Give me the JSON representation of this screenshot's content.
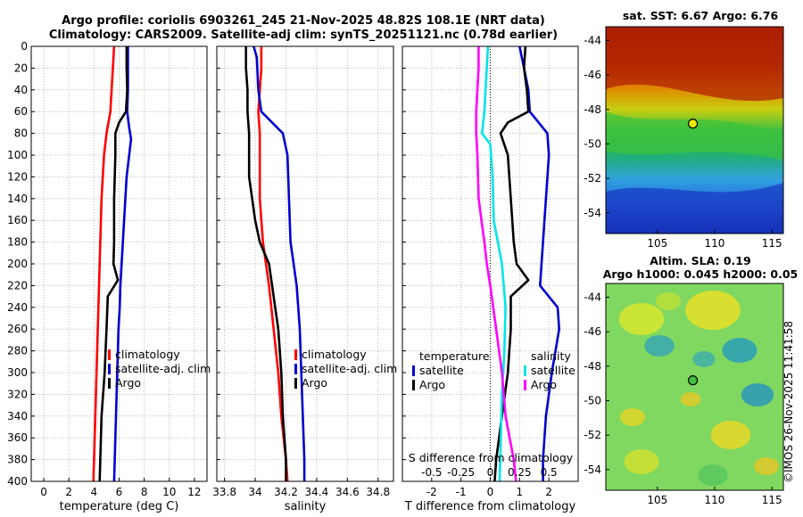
{
  "header": {
    "title_line1": "Argo profile: coriolis 6903261_245 21-Nov-2025 48.82S 108.1E (NRT data)",
    "title_line2": "Climatology: CARS2009. Satellite-adj clim: synTS_20251121.nc (0.78d earlier)"
  },
  "colors": {
    "climatology": "#ff0000",
    "satellite": "#0000d0",
    "argo": "#000000",
    "s_satellite": "#00e5e5",
    "s_argo": "#ff00ff"
  },
  "chart_data": [
    {
      "type": "line",
      "name": "temperature-profile",
      "xlabel": "temperature (deg C)",
      "xlim": [
        -1,
        13
      ],
      "xticks": [
        0,
        2,
        4,
        6,
        8,
        10,
        12
      ],
      "ylim": [
        0,
        400
      ],
      "yticks": [
        0,
        20,
        40,
        60,
        80,
        100,
        120,
        140,
        160,
        180,
        200,
        220,
        240,
        260,
        280,
        300,
        320,
        340,
        360,
        380,
        400
      ],
      "legend": [
        "climatology",
        "satellite-adj. clim",
        "Argo"
      ],
      "series": [
        {
          "name": "climatology",
          "color": "#ff0000",
          "depth": [
            0,
            20,
            40,
            60,
            80,
            100,
            120,
            140,
            160,
            180,
            200,
            220,
            240,
            260,
            280,
            300,
            320,
            340,
            360,
            380,
            400
          ],
          "values": [
            5.6,
            5.5,
            5.4,
            5.3,
            5.0,
            4.8,
            4.7,
            4.6,
            4.55,
            4.5,
            4.45,
            4.4,
            4.35,
            4.3,
            4.25,
            4.2,
            4.15,
            4.1,
            4.05,
            4.0,
            3.95
          ]
        },
        {
          "name": "satellite-adj. clim",
          "color": "#0000d0",
          "depth": [
            0,
            20,
            40,
            60,
            75,
            85,
            100,
            120,
            140,
            160,
            180,
            200,
            220,
            240,
            260,
            280,
            300,
            320,
            340,
            360,
            380,
            400
          ],
          "values": [
            6.7,
            6.7,
            6.7,
            6.65,
            6.8,
            6.95,
            6.8,
            6.6,
            6.5,
            6.4,
            6.3,
            6.2,
            6.1,
            6.05,
            5.95,
            5.9,
            5.85,
            5.8,
            5.75,
            5.7,
            5.65,
            5.6
          ]
        },
        {
          "name": "Argo",
          "color": "#000000",
          "depth": [
            0,
            20,
            40,
            60,
            70,
            80,
            100,
            120,
            140,
            160,
            180,
            200,
            215,
            230,
            260,
            300,
            340,
            380,
            400
          ],
          "values": [
            6.6,
            6.6,
            6.65,
            6.55,
            6.0,
            5.7,
            5.7,
            5.65,
            5.6,
            5.6,
            5.6,
            5.55,
            5.9,
            5.1,
            5.0,
            4.85,
            4.6,
            4.5,
            4.45
          ]
        }
      ]
    },
    {
      "type": "line",
      "name": "salinity-profile",
      "xlabel": "salinity",
      "xlim": [
        33.75,
        34.9
      ],
      "xticks": [
        33.8,
        34,
        34.2,
        34.4,
        34.6,
        34.8
      ],
      "ylim": [
        0,
        400
      ],
      "legend": [
        "climatology",
        "satellite-adj. clim",
        "Argo"
      ],
      "series": [
        {
          "name": "climatology",
          "color": "#ff0000",
          "depth": [
            0,
            20,
            40,
            60,
            80,
            100,
            140,
            180,
            200,
            220,
            260,
            300,
            340,
            380,
            400
          ],
          "values": [
            34.04,
            34.04,
            34.03,
            34.02,
            34.03,
            34.03,
            34.03,
            34.05,
            34.07,
            34.09,
            34.12,
            34.15,
            34.17,
            34.2,
            34.21
          ]
        },
        {
          "name": "satellite-adj. clim",
          "color": "#0000d0",
          "depth": [
            0,
            10,
            40,
            60,
            80,
            100,
            140,
            180,
            200,
            220,
            260,
            300,
            340,
            380,
            400
          ],
          "values": [
            33.99,
            34.01,
            34.02,
            34.04,
            34.18,
            34.21,
            34.22,
            34.23,
            34.25,
            34.27,
            34.29,
            34.3,
            34.31,
            34.32,
            34.32
          ]
        },
        {
          "name": "Argo",
          "color": "#000000",
          "depth": [
            0,
            20,
            40,
            60,
            80,
            100,
            120,
            140,
            160,
            180,
            200,
            220,
            240,
            260,
            280,
            300,
            340,
            380,
            400
          ],
          "values": [
            33.94,
            33.94,
            33.95,
            33.95,
            33.96,
            33.96,
            33.96,
            33.98,
            34.0,
            34.03,
            34.09,
            34.11,
            34.13,
            34.15,
            34.16,
            34.17,
            34.18,
            34.2,
            34.2
          ]
        }
      ]
    },
    {
      "type": "line",
      "name": "difference-profile",
      "xlabel": "T difference from climatology",
      "top_axis_label": "S difference from climatology",
      "xlim": [
        -3,
        3
      ],
      "xticks": [
        -2,
        -1,
        0,
        1,
        2
      ],
      "s_xticks": [
        -0.5,
        -0.25,
        0,
        0.25,
        0.5
      ],
      "s_ticklabels": [
        "-0.5",
        "-0.25",
        "0",
        "0.25",
        "0.5"
      ],
      "ylim": [
        0,
        400
      ],
      "legend_left": {
        "title": "temperature",
        "items": [
          "satellite",
          "Argo"
        ]
      },
      "legend_right": {
        "title": "salinity",
        "items": [
          "satellite",
          "Argo"
        ]
      },
      "series": [
        {
          "name": "temperature satellite",
          "color": "#0000d0",
          "depth": [
            0,
            20,
            40,
            60,
            80,
            100,
            140,
            180,
            220,
            240,
            260,
            300,
            340,
            380,
            400
          ],
          "values": [
            1.0,
            1.15,
            1.3,
            1.35,
            1.95,
            2.0,
            1.9,
            1.8,
            1.7,
            2.3,
            2.35,
            2.1,
            1.9,
            1.8,
            1.8
          ]
        },
        {
          "name": "temperature Argo",
          "color": "#000000",
          "depth": [
            0,
            20,
            40,
            60,
            70,
            80,
            100,
            140,
            180,
            200,
            215,
            230,
            260,
            300,
            340,
            380,
            400
          ],
          "values": [
            1.2,
            1.15,
            1.25,
            1.3,
            0.6,
            0.35,
            0.6,
            0.7,
            0.8,
            0.9,
            1.3,
            0.7,
            0.7,
            0.6,
            0.4,
            0.2,
            0.15
          ]
        },
        {
          "name": "salinity satellite",
          "color": "#00e5e5",
          "depth": [
            0,
            20,
            40,
            60,
            80,
            90,
            120,
            160,
            200,
            240,
            280,
            320,
            360,
            400
          ],
          "values": [
            -0.02,
            -0.03,
            -0.04,
            -0.05,
            -0.07,
            0.0,
            0.02,
            0.03,
            0.1,
            0.13,
            0.12,
            0.1,
            0.09,
            0.08
          ]
        },
        {
          "name": "salinity Argo",
          "color": "#ff00ff",
          "depth": [
            0,
            20,
            40,
            60,
            80,
            100,
            140,
            180,
            200,
            220,
            260,
            300,
            340,
            380,
            400
          ],
          "values": [
            -0.1,
            -0.1,
            -0.11,
            -0.12,
            -0.12,
            -0.11,
            -0.1,
            -0.05,
            -0.03,
            -0.0,
            0.05,
            0.1,
            0.13,
            0.2,
            0.22
          ]
        }
      ]
    },
    {
      "type": "heatmap",
      "name": "sst-map",
      "title": "sat. SST: 6.67 Argo: 6.76",
      "xticks": [
        105,
        110,
        115
      ],
      "yticks": [
        -44,
        -46,
        -48,
        -50,
        -52,
        -54
      ],
      "marker": {
        "lon": 108.1,
        "lat": -48.82
      }
    },
    {
      "type": "heatmap",
      "name": "sla-map",
      "title_line1": "Altim. SLA: 0.19",
      "title_line2": "Argo h1000: 0.045 h2000: 0.05",
      "xticks": [
        105,
        110,
        115
      ],
      "yticks": [
        -44,
        -46,
        -48,
        -50,
        -52,
        -54
      ],
      "marker": {
        "lon": 108.1,
        "lat": -48.82
      }
    }
  ],
  "footer": {
    "stamp": "©IMOS 26-Nov-2025 11:41:58"
  }
}
